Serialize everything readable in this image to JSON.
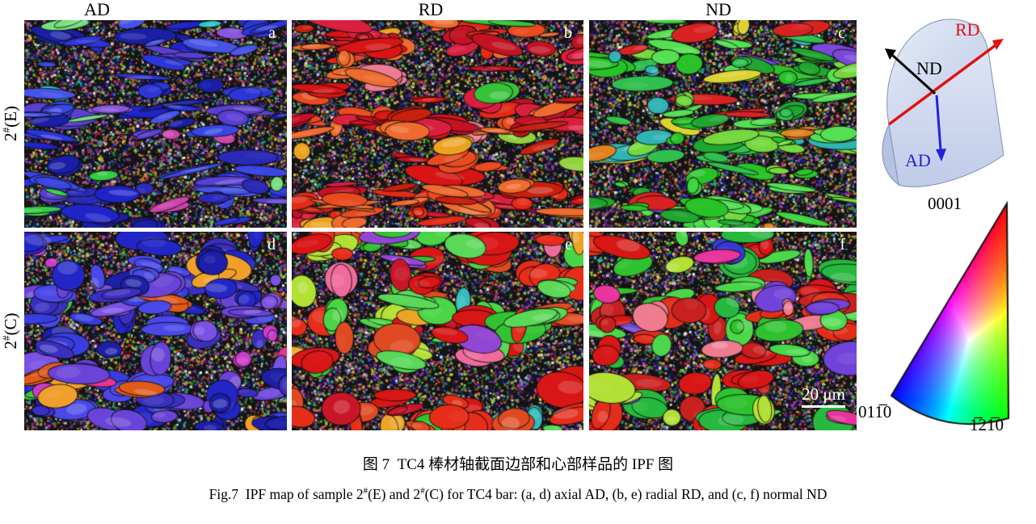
{
  "figure": {
    "column_headers": [
      {
        "label": "AD"
      },
      {
        "label": "RD"
      },
      {
        "label": "ND"
      }
    ],
    "row_labels": [
      {
        "parts": [
          {
            "t": "2"
          },
          {
            "t": "#",
            "sup": true
          },
          {
            "t": "(E)"
          }
        ]
      },
      {
        "parts": [
          {
            "t": "2"
          },
          {
            "t": "#",
            "sup": true
          },
          {
            "t": "(C)"
          }
        ]
      }
    ],
    "panels": [
      {
        "letter": "a",
        "row": "2#(E)",
        "column": "AD",
        "shape": "elongated",
        "seed": 101,
        "dominant": [
          "#1f24c8",
          "#2c35d8",
          "#3a46e2",
          "#1b1fa6",
          "#4753e8",
          "#5a3fd2",
          "#2a2ab8"
        ],
        "accent": [
          "#35cc45",
          "#2fc4c4",
          "#74e07e",
          "#8b55dd",
          "#cc44aa"
        ],
        "accent_ratio": 0.2
      },
      {
        "letter": "b",
        "row": "2#(E)",
        "column": "RD",
        "shape": "elongated",
        "seed": 202,
        "dominant": [
          "#d81414",
          "#e22a16",
          "#c21223",
          "#ea4a20",
          "#ef6a2e",
          "#da1f3e",
          "#c8200f"
        ],
        "accent": [
          "#38c238",
          "#eaa31e",
          "#ee7b92",
          "#8fd23c"
        ],
        "accent_ratio": 0.17
      },
      {
        "letter": "c",
        "row": "2#(E)",
        "column": "ND",
        "shape": "elongated",
        "seed": 303,
        "dominant": [
          "#27c227",
          "#3cd53c",
          "#1fa530",
          "#54e052",
          "#74d83e",
          "#2fbf4d"
        ],
        "accent": [
          "#d82222",
          "#e2821f",
          "#dcd232",
          "#2fb4b4",
          "#7b48d8"
        ],
        "accent_ratio": 0.24
      },
      {
        "letter": "d",
        "row": "2#(C)",
        "column": "AD",
        "shape": "equiaxed",
        "seed": 404,
        "dominant": [
          "#2326c6",
          "#393ce0",
          "#1d1fa8",
          "#4a48e8",
          "#6a43d8",
          "#7b52e4",
          "#3a2fc0"
        ],
        "accent": [
          "#cc3ccc",
          "#e05a1a",
          "#42c242",
          "#e8348e",
          "#f0a02a"
        ],
        "accent_ratio": 0.22
      },
      {
        "letter": "e",
        "row": "2#(C)",
        "column": "RD",
        "shape": "equiaxed",
        "seed": 505,
        "dominant": [
          "#d81616",
          "#e52d1a",
          "#c81628",
          "#32c232",
          "#49d545",
          "#5ad858",
          "#e04a22"
        ],
        "accent": [
          "#b2e034",
          "#eca424",
          "#9246d2",
          "#ee6b9b",
          "#34bcbc"
        ],
        "accent_ratio": 0.14
      },
      {
        "letter": "f",
        "row": "2#(C)",
        "column": "ND",
        "shape": "equiaxed",
        "seed": 606,
        "dominant": [
          "#2fc22f",
          "#4ad84a",
          "#d81616",
          "#e22d1a",
          "#27b83f",
          "#c8201f"
        ],
        "accent": [
          "#7243d8",
          "#3639d2",
          "#e8349c",
          "#b2e034",
          "#ee7b8e"
        ],
        "accent_ratio": 0.24
      }
    ],
    "speckle_palette": [
      "#b82121",
      "#1f9f2a",
      "#2327c2",
      "#d8ce28",
      "#df7e22",
      "#bb31bb",
      "#28b0b0",
      "#efefef",
      "#7a41cc",
      "#e65d85",
      "#88d83a",
      "#101010",
      "#15158a"
    ],
    "scale_bar_label": "20 μm"
  },
  "orientation_diagram": {
    "axes": [
      {
        "label": "RD",
        "color": "#e01212"
      },
      {
        "label": "ND",
        "color": "#000000"
      },
      {
        "label": "AD",
        "color": "#2222d8"
      }
    ],
    "body_color": "#ccd7ee"
  },
  "ipf_legend": {
    "apex_label": "0001",
    "bottom_left_label": "011̅0",
    "bottom_right_label": "1̅21̅0",
    "corner_colors": {
      "apex": "#ff0000",
      "bottom_left": "#0000ff",
      "bottom_right": "#00ff00"
    }
  },
  "caption": {
    "zh": "图 7  TC4 棒材轴截面边部和心部样品的 IPF 图",
    "en_parts": [
      {
        "t": "Fig.7  IPF map of sample 2"
      },
      {
        "t": "#",
        "sup": true
      },
      {
        "t": "(E) and 2"
      },
      {
        "t": "#",
        "sup": true
      },
      {
        "t": "(C) for TC4 bar: (a, d) axial AD, (b, e) radial RD, and (c, f) normal ND"
      }
    ]
  }
}
